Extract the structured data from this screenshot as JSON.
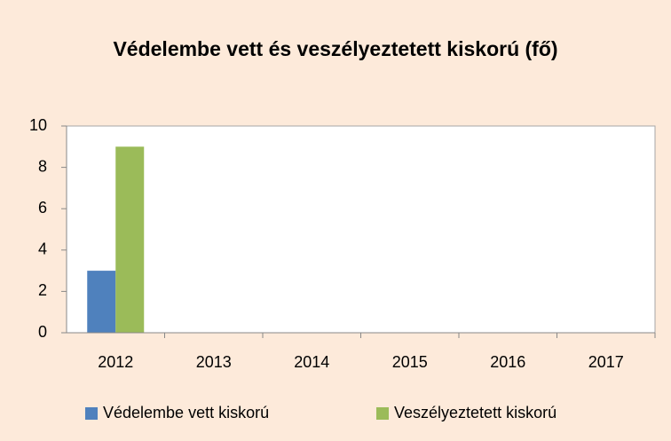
{
  "chart_data": {
    "type": "bar",
    "title": "Védelembe vett és veszélyeztetett kiskorú (fő)",
    "categories": [
      "2012",
      "2013",
      "2014",
      "2015",
      "2016",
      "2017"
    ],
    "series": [
      {
        "name": "Védelembe vett kiskorú",
        "color": "#4f81bd",
        "values": [
          3,
          0,
          0,
          0,
          0,
          0
        ]
      },
      {
        "name": "Veszélyeztetett kiskorú",
        "color": "#9bbb59",
        "values": [
          9,
          0,
          0,
          0,
          0,
          0
        ]
      }
    ],
    "ylim": [
      0,
      10
    ],
    "yticks": [
      0,
      2,
      4,
      6,
      8,
      10
    ],
    "grid": false,
    "legend": "bottom"
  }
}
